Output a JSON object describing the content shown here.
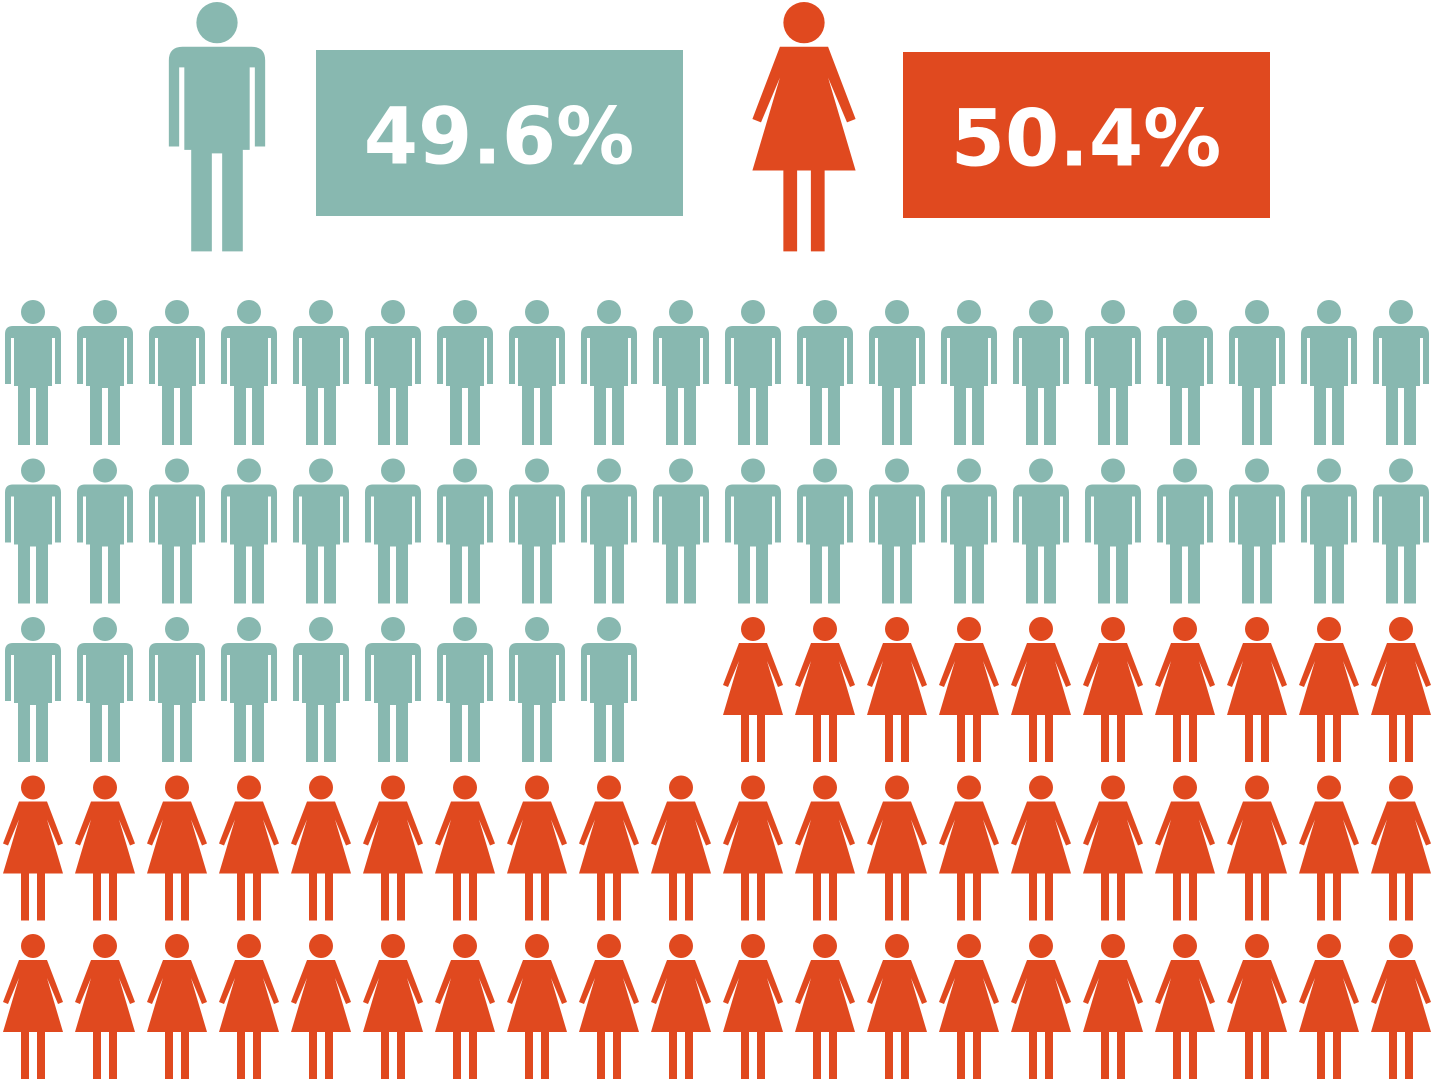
{
  "chart_data": {
    "type": "pictograph",
    "values": [
      49.6,
      50.4
    ],
    "value_labels": [
      "49.6%",
      "50.4%"
    ],
    "colors": [
      "#88b8b0",
      "#e0491f"
    ]
  }
}
